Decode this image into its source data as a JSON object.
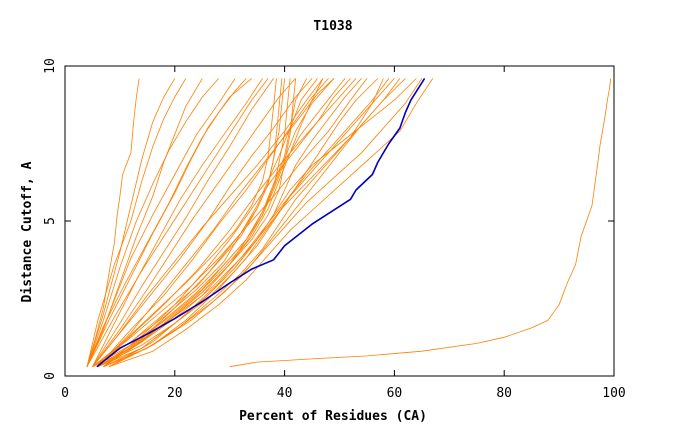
{
  "chart_data": {
    "type": "line",
    "title": "T1038",
    "xlabel": "Percent of Residues (CA)",
    "ylabel": "Distance Cutoff, A",
    "xlim": [
      0,
      100
    ],
    "ylim": [
      0,
      10
    ],
    "xticks": [
      "0",
      "20",
      "40",
      "60",
      "80",
      "100"
    ],
    "yticks": [
      "0",
      "5",
      "10"
    ],
    "grid": false,
    "legend": "none",
    "colors": {
      "models": "#ff8000",
      "highlight": "#0000c0"
    },
    "series": [
      {
        "x": [
          5.8,
          10,
          15,
          20,
          25,
          30,
          34,
          38,
          40,
          45,
          52,
          53,
          56,
          57,
          59,
          61,
          62,
          63,
          65.5
        ],
        "y": [
          0.3,
          0.9,
          1.35,
          1.85,
          2.4,
          3.0,
          3.45,
          3.75,
          4.2,
          4.9,
          5.7,
          6.0,
          6.5,
          6.9,
          7.5,
          8.0,
          8.5,
          8.9,
          9.6
        ],
        "role": "highlight"
      },
      {
        "x": [
          30,
          35,
          45,
          55,
          65,
          75,
          80,
          85,
          88,
          90,
          91.5,
          93,
          94,
          96,
          97,
          97.5,
          98.3,
          98.8,
          99.2,
          99.4
        ],
        "y": [
          0.3,
          0.45,
          0.55,
          0.65,
          0.8,
          1.05,
          1.25,
          1.55,
          1.8,
          2.3,
          3.0,
          3.6,
          4.5,
          5.5,
          6.8,
          7.5,
          8.3,
          8.9,
          9.3,
          9.6
        ],
        "role": "model"
      },
      {
        "x": [
          4,
          5.5,
          7,
          8,
          9,
          9.5,
          10,
          10.5,
          12,
          12.5,
          13,
          13.5
        ],
        "y": [
          0.3,
          1.2,
          2.2,
          3.3,
          4.3,
          5.2,
          5.8,
          6.5,
          7.2,
          8.2,
          9.0,
          9.6
        ],
        "role": "model"
      },
      {
        "x": [
          4,
          7,
          10,
          12,
          14,
          16,
          18,
          20
        ],
        "y": [
          0.3,
          2.0,
          4.0,
          5.5,
          7.0,
          8.2,
          9.0,
          9.6
        ],
        "role": "model"
      },
      {
        "x": [
          4,
          7,
          10,
          13,
          16,
          19,
          22,
          25,
          28
        ],
        "y": [
          0.3,
          1.8,
          3.5,
          5.0,
          6.2,
          7.3,
          8.2,
          9.0,
          9.6
        ],
        "role": "model"
      },
      {
        "x": [
          4,
          8,
          12,
          16,
          20,
          24,
          28,
          31
        ],
        "y": [
          0.3,
          2.0,
          3.8,
          5.2,
          6.5,
          7.8,
          8.8,
          9.6
        ],
        "role": "model"
      },
      {
        "x": [
          4,
          8,
          12,
          16,
          20,
          23,
          26,
          30,
          34
        ],
        "y": [
          0.3,
          1.8,
          3.2,
          4.6,
          5.9,
          7.0,
          8.0,
          9.0,
          9.6
        ],
        "role": "model"
      },
      {
        "x": [
          4,
          9,
          14,
          18,
          22,
          26,
          30,
          34,
          37
        ],
        "y": [
          0.3,
          1.9,
          3.4,
          4.5,
          5.6,
          6.7,
          7.8,
          8.9,
          9.6
        ],
        "role": "model"
      },
      {
        "x": [
          5,
          10,
          14,
          18,
          22,
          26,
          30,
          34,
          38
        ],
        "y": [
          0.3,
          1.7,
          2.9,
          4.0,
          5.1,
          6.3,
          7.4,
          8.6,
          9.6
        ],
        "role": "model"
      },
      {
        "x": [
          5,
          10,
          15,
          19,
          23,
          27,
          31,
          35,
          39,
          42
        ],
        "y": [
          0.3,
          1.5,
          2.8,
          3.9,
          5.0,
          6.0,
          7.0,
          8.0,
          9.0,
          9.6
        ],
        "role": "model"
      },
      {
        "x": [
          5,
          11,
          16,
          21,
          26,
          30,
          34,
          38,
          42,
          45
        ],
        "y": [
          0.3,
          1.6,
          2.7,
          3.8,
          5.0,
          6.1,
          7.1,
          8.0,
          9.0,
          9.6
        ],
        "role": "model"
      },
      {
        "x": [
          6,
          12,
          18,
          23,
          28,
          33,
          37,
          41,
          45,
          48
        ],
        "y": [
          0.3,
          1.5,
          2.6,
          3.7,
          4.9,
          6.0,
          7.0,
          8.0,
          9.0,
          9.6
        ],
        "role": "model"
      },
      {
        "x": [
          6,
          12,
          18,
          24,
          30,
          35,
          40,
          45,
          50,
          53
        ],
        "y": [
          0.3,
          1.3,
          2.3,
          3.4,
          4.7,
          5.9,
          7.0,
          8.0,
          9.0,
          9.6
        ],
        "role": "model"
      },
      {
        "x": [
          7,
          14,
          20,
          26,
          32,
          38,
          43,
          48,
          52,
          55
        ],
        "y": [
          0.3,
          1.2,
          2.2,
          3.3,
          4.6,
          5.8,
          6.9,
          7.9,
          8.9,
          9.6
        ],
        "role": "model"
      },
      {
        "x": [
          8,
          16,
          22,
          28,
          34,
          40,
          46,
          52,
          56,
          58
        ],
        "y": [
          0.3,
          1.1,
          2.0,
          3.0,
          4.2,
          5.5,
          6.6,
          7.7,
          8.8,
          9.6
        ],
        "role": "model"
      },
      {
        "x": [
          8,
          16,
          22,
          28,
          33,
          37,
          41,
          46,
          51,
          56,
          60
        ],
        "y": [
          0.3,
          1.0,
          1.8,
          2.8,
          3.8,
          4.8,
          5.8,
          6.8,
          7.8,
          8.8,
          9.6
        ],
        "role": "model"
      },
      {
        "x": [
          5,
          12,
          18,
          24,
          29,
          33,
          36,
          38,
          40,
          43,
          47,
          51
        ],
        "y": [
          0.3,
          0.9,
          1.7,
          2.6,
          3.5,
          4.3,
          5.2,
          6.0,
          6.9,
          7.8,
          8.7,
          9.6
        ],
        "role": "model"
      },
      {
        "x": [
          5,
          12,
          18,
          24,
          29,
          33,
          36,
          38,
          40,
          42,
          45,
          49
        ],
        "y": [
          0.3,
          1.0,
          1.8,
          2.7,
          3.6,
          4.4,
          5.3,
          6.1,
          7.0,
          7.9,
          8.8,
          9.6
        ],
        "role": "model"
      },
      {
        "x": [
          5,
          12,
          18,
          24,
          29,
          32,
          35,
          37,
          39,
          41,
          43,
          46
        ],
        "y": [
          0.3,
          1.1,
          1.9,
          2.8,
          3.7,
          4.6,
          5.5,
          6.3,
          7.1,
          8.0,
          8.9,
          9.6
        ],
        "role": "model"
      },
      {
        "x": [
          6,
          13,
          19,
          25,
          30,
          34,
          37,
          39,
          41,
          43,
          45,
          47
        ],
        "y": [
          0.3,
          1.0,
          1.8,
          2.6,
          3.6,
          4.5,
          5.4,
          6.3,
          7.2,
          8.1,
          8.9,
          9.6
        ],
        "role": "model"
      },
      {
        "x": [
          6,
          13,
          19,
          25,
          30,
          33,
          36,
          38,
          40,
          41,
          42,
          44
        ],
        "y": [
          0.3,
          1.0,
          1.8,
          2.7,
          3.6,
          4.4,
          5.3,
          6.2,
          7.1,
          8.0,
          8.9,
          9.6
        ],
        "role": "model"
      },
      {
        "x": [
          5,
          12,
          18,
          24,
          28,
          32,
          35,
          37,
          38,
          39,
          39.5,
          40
        ],
        "y": [
          0.3,
          1.1,
          2.0,
          2.9,
          3.7,
          4.5,
          5.4,
          6.2,
          7.0,
          7.9,
          8.8,
          9.6
        ],
        "role": "model"
      },
      {
        "x": [
          6,
          14,
          20,
          26,
          31,
          35,
          38,
          40,
          42,
          45,
          48,
          51,
          54
        ],
        "y": [
          0.3,
          1.0,
          1.7,
          2.6,
          3.5,
          4.4,
          5.2,
          6.0,
          6.8,
          7.6,
          8.3,
          9.0,
          9.6
        ],
        "role": "model"
      },
      {
        "x": [
          6,
          14,
          20,
          26,
          31,
          35,
          38,
          41,
          44,
          47,
          50,
          53,
          57
        ],
        "y": [
          0.3,
          0.9,
          1.7,
          2.5,
          3.4,
          4.2,
          5.0,
          5.8,
          6.6,
          7.4,
          8.2,
          8.9,
          9.6
        ],
        "role": "model"
      },
      {
        "x": [
          7,
          15,
          21,
          27,
          32,
          36,
          39,
          42,
          46,
          50,
          54,
          58,
          62
        ],
        "y": [
          0.3,
          0.9,
          1.6,
          2.5,
          3.3,
          4.1,
          4.9,
          5.7,
          6.5,
          7.3,
          8.1,
          8.9,
          9.6
        ],
        "role": "model"
      },
      {
        "x": [
          7,
          15,
          21,
          27,
          32,
          36,
          40,
          44,
          49,
          54,
          58,
          62,
          65
        ],
        "y": [
          0.3,
          0.9,
          1.6,
          2.4,
          3.2,
          4.0,
          4.8,
          5.6,
          6.4,
          7.2,
          8.0,
          8.8,
          9.6
        ],
        "role": "model"
      },
      {
        "x": [
          8,
          16,
          22,
          28,
          33,
          37,
          41,
          46,
          51,
          56,
          61,
          64,
          67
        ],
        "y": [
          0.3,
          0.8,
          1.5,
          2.3,
          3.1,
          3.9,
          4.7,
          5.5,
          6.3,
          7.1,
          7.9,
          8.8,
          9.6
        ],
        "role": "model"
      },
      {
        "x": [
          7,
          14,
          20,
          26,
          31,
          35,
          38,
          41,
          45,
          50,
          55,
          60,
          64
        ],
        "y": [
          0.3,
          0.9,
          1.7,
          2.6,
          3.5,
          4.4,
          5.2,
          6.0,
          6.8,
          7.5,
          8.2,
          8.9,
          9.6
        ],
        "role": "model"
      },
      {
        "x": [
          6,
          13,
          19,
          25,
          30,
          34,
          37,
          39,
          40,
          41,
          41.5,
          42
        ],
        "y": [
          0.3,
          1.0,
          1.8,
          2.7,
          3.6,
          4.4,
          5.2,
          6.0,
          6.9,
          7.8,
          8.7,
          9.6
        ],
        "role": "model"
      },
      {
        "x": [
          6,
          13,
          19,
          25,
          29,
          33,
          36,
          38,
          39,
          40,
          40.5,
          41
        ],
        "y": [
          0.3,
          1.1,
          1.9,
          2.8,
          3.6,
          4.4,
          5.2,
          6.1,
          6.9,
          7.8,
          8.7,
          9.6
        ],
        "role": "model"
      },
      {
        "x": [
          5,
          11,
          17,
          23,
          28,
          32,
          35,
          37,
          38,
          38.5,
          39,
          39.5
        ],
        "y": [
          0.3,
          1.1,
          2.0,
          2.9,
          3.8,
          4.6,
          5.4,
          6.2,
          7.0,
          7.8,
          8.7,
          9.6
        ],
        "role": "model"
      },
      {
        "x": [
          5,
          10,
          16,
          22,
          27,
          31,
          34,
          36,
          37,
          37.5,
          38,
          38.5
        ],
        "y": [
          0.3,
          1.0,
          2.0,
          3.0,
          3.9,
          4.7,
          5.5,
          6.3,
          7.1,
          7.9,
          8.7,
          9.6
        ],
        "role": "model"
      },
      {
        "x": [
          8,
          16,
          23,
          29,
          34,
          38,
          42,
          46,
          50,
          54,
          58,
          61
        ],
        "y": [
          0.3,
          1.0,
          1.8,
          2.7,
          3.6,
          4.5,
          5.4,
          6.3,
          7.2,
          8.1,
          8.9,
          9.6
        ],
        "role": "model"
      },
      {
        "x": [
          7,
          14,
          21,
          27,
          32,
          36,
          40,
          44,
          48,
          52,
          56,
          59
        ],
        "y": [
          0.3,
          1.1,
          2.0,
          2.9,
          3.8,
          4.7,
          5.6,
          6.5,
          7.3,
          8.1,
          8.9,
          9.6
        ],
        "role": "model"
      },
      {
        "x": [
          4,
          7,
          10,
          13,
          16,
          18,
          20,
          22,
          25
        ],
        "y": [
          0.3,
          1.5,
          3.0,
          4.5,
          5.8,
          6.9,
          7.8,
          8.7,
          9.6
        ],
        "role": "model"
      },
      {
        "x": [
          4,
          6,
          9,
          12,
          14,
          16,
          18,
          20,
          22
        ],
        "y": [
          0.3,
          1.8,
          3.6,
          5.0,
          6.3,
          7.4,
          8.3,
          9.0,
          9.6
        ],
        "role": "model"
      },
      {
        "x": [
          4,
          7,
          11,
          15,
          19,
          22,
          25,
          28,
          31,
          33
        ],
        "y": [
          0.3,
          1.6,
          3.0,
          4.3,
          5.6,
          6.7,
          7.7,
          8.5,
          9.2,
          9.6
        ],
        "role": "model"
      },
      {
        "x": [
          5,
          9,
          13,
          17,
          21,
          25,
          29,
          33,
          36
        ],
        "y": [
          0.3,
          1.7,
          3.1,
          4.4,
          5.7,
          6.8,
          7.8,
          8.8,
          9.6
        ],
        "role": "model"
      },
      {
        "x": [
          5,
          10,
          15,
          20,
          25,
          30,
          35,
          40,
          44,
          47
        ],
        "y": [
          0.3,
          1.4,
          2.6,
          3.7,
          4.8,
          5.8,
          6.8,
          7.9,
          8.9,
          9.6
        ],
        "role": "model"
      },
      {
        "x": [
          6,
          12,
          17,
          22,
          27,
          31,
          35,
          39,
          43,
          46,
          49
        ],
        "y": [
          0.3,
          1.4,
          2.5,
          3.6,
          4.7,
          5.7,
          6.6,
          7.5,
          8.4,
          9.1,
          9.6
        ],
        "role": "model"
      },
      {
        "x": [
          7,
          14,
          20,
          25,
          30,
          34,
          38,
          42,
          46,
          49,
          52
        ],
        "y": [
          0.3,
          1.3,
          2.3,
          3.3,
          4.4,
          5.4,
          6.4,
          7.3,
          8.2,
          9.0,
          9.6
        ],
        "role": "model"
      }
    ]
  }
}
